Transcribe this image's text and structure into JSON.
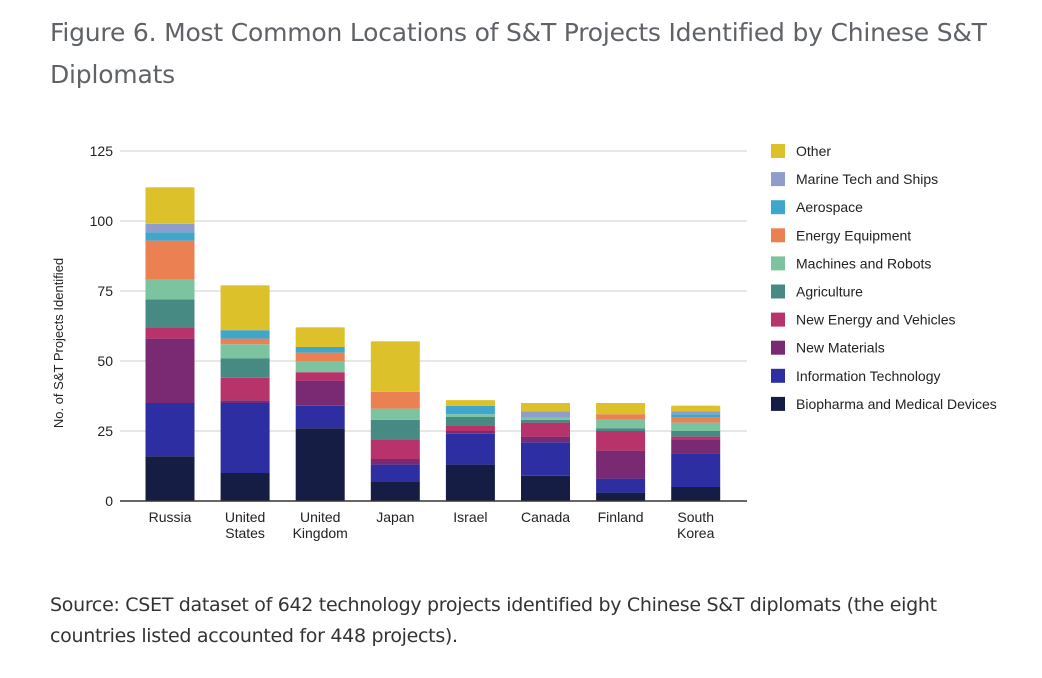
{
  "title": "Figure 6. Most Common Locations of S&T Projects Identified by Chinese S&T Diplomats",
  "caption": "Source: CSET dataset of 642 technology projects identified by Chinese S&T diplomats (the eight countries listed accounted for 448 projects).",
  "chart_data": {
    "type": "bar",
    "stacked": true,
    "title": "Figure 6. Most Common Locations of S&T Projects Identified by Chinese S&T Diplomats",
    "xlabel": "",
    "ylabel": "No. of S&T Projects Identified",
    "ylim": [
      0,
      125
    ],
    "yticks": [
      0,
      25,
      50,
      75,
      100,
      125
    ],
    "grid": true,
    "legend_position": "right",
    "categories": [
      "Russia",
      "United States",
      "United Kingdom",
      "Japan",
      "Israel",
      "Canada",
      "Finland",
      "South Korea"
    ],
    "category_label_lines": [
      [
        "Russia"
      ],
      [
        "United",
        "States"
      ],
      [
        "United",
        "Kingdom"
      ],
      [
        "Japan"
      ],
      [
        "Israel"
      ],
      [
        "Canada"
      ],
      [
        "Finland"
      ],
      [
        "South",
        "Korea"
      ]
    ],
    "series": [
      {
        "name": "Biopharma and Medical Devices",
        "color": "#161d44",
        "values": [
          16,
          10,
          26,
          7,
          13,
          9,
          3,
          5
        ]
      },
      {
        "name": "Information Technology",
        "color": "#2e2ea3",
        "values": [
          19,
          25,
          8,
          6,
          11,
          12,
          5,
          12
        ]
      },
      {
        "name": "New Materials",
        "color": "#7a2a72",
        "values": [
          23,
          1,
          9,
          2,
          1,
          2,
          10,
          5
        ]
      },
      {
        "name": "New Energy and Vehicles",
        "color": "#b8336a",
        "values": [
          4,
          8,
          3,
          7,
          2,
          5,
          7,
          1
        ]
      },
      {
        "name": "Agriculture",
        "color": "#478a84",
        "values": [
          10,
          7,
          0,
          7,
          3,
          1,
          1,
          2
        ]
      },
      {
        "name": "Machines and Robots",
        "color": "#7cc4a0",
        "values": [
          7,
          5,
          4,
          4,
          1,
          1,
          3,
          3
        ]
      },
      {
        "name": "Energy Equipment",
        "color": "#eb8153",
        "values": [
          14,
          2,
          3,
          6,
          0,
          0,
          2,
          2
        ]
      },
      {
        "name": "Aerospace",
        "color": "#3fa6cc",
        "values": [
          3,
          3,
          2,
          0,
          3,
          0,
          0,
          1
        ]
      },
      {
        "name": "Marine Tech and Ships",
        "color": "#8e9dcc",
        "values": [
          3,
          0,
          0,
          0,
          0,
          2,
          0,
          1
        ]
      },
      {
        "name": "Other",
        "color": "#dcc12b",
        "values": [
          13,
          16,
          7,
          18,
          2,
          3,
          4,
          2
        ]
      }
    ],
    "totals": [
      112,
      77,
      62,
      57,
      36,
      35,
      35,
      34
    ]
  }
}
